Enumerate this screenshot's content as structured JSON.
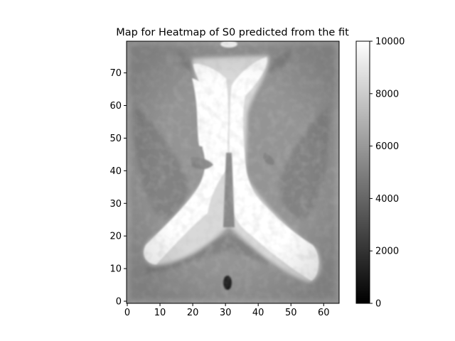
{
  "chart_data": {
    "type": "heatmap",
    "title": "Map for Heatmap of S0 predicted from the fit",
    "xlabel": "",
    "ylabel": "",
    "xlim": [
      0,
      64
    ],
    "ylim": [
      0,
      79
    ],
    "x_ticks": [
      "0",
      "10",
      "20",
      "30",
      "40",
      "50",
      "60"
    ],
    "y_ticks": [
      "0",
      "10",
      "20",
      "30",
      "40",
      "50",
      "60",
      "70"
    ],
    "colormap": "gray",
    "colorbar": {
      "range": [
        0,
        10000
      ],
      "ticks": [
        "0",
        "2000",
        "4000",
        "6000",
        "8000",
        "10000"
      ]
    },
    "background_value": 5800,
    "regions": [
      {
        "name": "lateral-ventricles",
        "value": 10000
      },
      {
        "name": "ventricle-edge",
        "value": 8500
      },
      {
        "name": "white-matter-dark-band",
        "value": 4600
      },
      {
        "name": "cortex-edge",
        "value": 6600
      },
      {
        "name": "septum",
        "value": 5000
      },
      {
        "name": "bottom-dark-spot",
        "value": 1200
      }
    ]
  }
}
